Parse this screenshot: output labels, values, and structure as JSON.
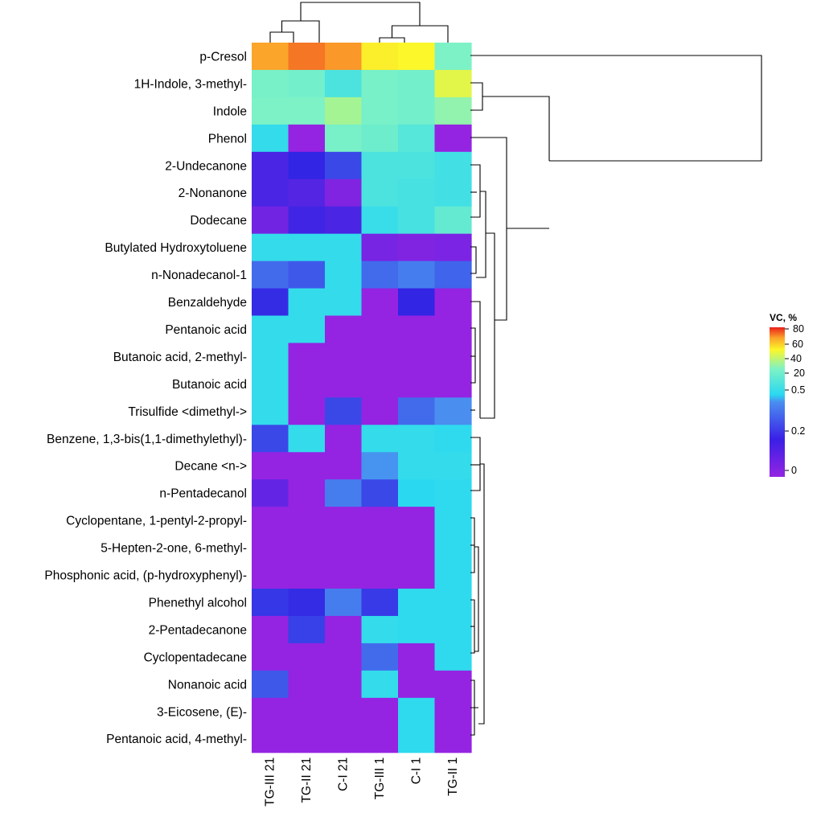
{
  "chart_data": {
    "type": "heatmap",
    "title": "",
    "columns": [
      "TG-III 21",
      "TG-II 21",
      "C-I 21",
      "TG-III 1",
      "C-I 1",
      "TG-II 1"
    ],
    "rows": [
      "p-Cresol",
      "1H-Indole, 3-methyl-",
      "Indole",
      "Phenol",
      "2-Undecanone",
      "2-Nonanone",
      "Dodecane",
      "Butylated Hydroxytoluene",
      "n-Nonadecanol-1",
      "Benzaldehyde",
      "Pentanoic acid",
      "Butanoic acid, 2-methyl-",
      "Butanoic acid",
      "Trisulfide <dimethyl->",
      "Benzene, 1,3-bis(1,1-dimethylethyl)-",
      "Decane <n->",
      "n-Pentadecanol",
      "Cyclopentane, 1-pentyl-2-propyl-",
      "5-Hepten-2-one, 6-methyl-",
      "Phosphonic acid, (p-hydroxyphenyl)-",
      "Phenethyl alcohol",
      "2-Pentadecanone",
      "Cyclopentadecane",
      "Nonanoic acid",
      "3-Eicosene, (E)-",
      "Pentanoic acid, 4-methyl-"
    ],
    "values": [
      [
        64,
        70,
        66,
        47,
        45,
        20
      ],
      [
        19,
        18,
        10,
        19,
        18,
        40
      ],
      [
        20,
        20,
        28,
        19,
        18,
        24
      ],
      [
        5,
        0,
        19,
        17,
        12,
        0
      ],
      [
        0.15,
        0.2,
        0.3,
        10,
        10,
        8
      ],
      [
        0.15,
        0.13,
        0.04,
        10,
        9,
        8
      ],
      [
        0.07,
        0.17,
        0.15,
        6,
        9,
        15
      ],
      [
        5,
        5,
        5,
        0.06,
        0.04,
        0.05
      ],
      [
        0.4,
        0.35,
        5,
        0.4,
        0.45,
        0.38
      ],
      [
        0.22,
        5,
        5,
        0,
        0.2,
        0
      ],
      [
        5,
        5,
        0,
        0,
        0,
        0
      ],
      [
        5,
        0,
        0,
        0,
        0,
        0
      ],
      [
        5,
        0,
        0,
        0,
        0,
        0
      ],
      [
        5,
        0,
        0.3,
        0,
        0.4,
        0.5
      ],
      [
        0.3,
        5,
        0,
        5,
        5,
        4
      ],
      [
        0,
        0,
        0,
        0.7,
        5,
        5
      ],
      [
        0.1,
        0,
        0.45,
        0.3,
        3,
        4
      ],
      [
        0,
        0,
        0,
        0,
        0,
        4
      ],
      [
        0,
        0,
        0,
        0,
        0,
        4
      ],
      [
        0,
        0,
        0,
        0,
        0,
        4
      ],
      [
        0.25,
        0.22,
        0.45,
        0.26,
        4,
        4
      ],
      [
        0,
        0.28,
        0,
        5,
        4,
        4
      ],
      [
        0,
        0,
        0,
        0.4,
        0,
        4
      ],
      [
        0.35,
        0,
        0,
        5,
        0,
        0
      ],
      [
        0,
        0,
        0,
        0,
        4,
        0
      ],
      [
        0,
        0,
        0,
        0,
        4,
        0
      ]
    ],
    "legend": {
      "title": "VC, %",
      "ticks": [
        "80",
        "60",
        "40",
        "20",
        "0.5",
        "0.2",
        "0"
      ],
      "position": "right",
      "colors": {
        "min": "#9424e2",
        "low": "#3225e4",
        "mid": "#2ad8f0",
        "high": "#fbf72a",
        "max": "#ea1f1b"
      }
    }
  }
}
